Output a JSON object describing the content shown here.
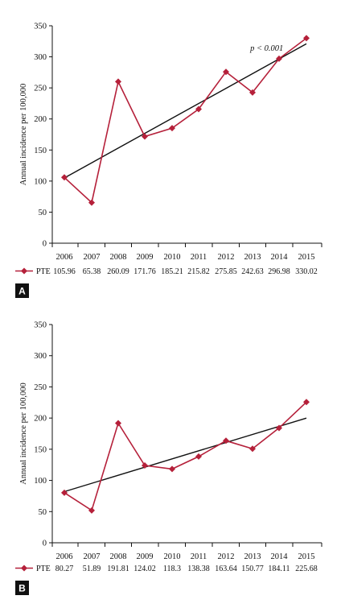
{
  "chart_data": [
    {
      "type": "line",
      "panel_label": "A",
      "ylabel": "Annual incidence per 100,000",
      "ylim": [
        0,
        350
      ],
      "yticks": [
        0,
        50,
        100,
        150,
        200,
        250,
        300,
        350
      ],
      "categories": [
        "2006",
        "2007",
        "2008",
        "2009",
        "2010",
        "2011",
        "2012",
        "2013",
        "2014",
        "2015"
      ],
      "series": [
        {
          "name": "PTE",
          "values": [
            105.96,
            65.38,
            260.09,
            171.76,
            185.21,
            215.82,
            275.85,
            242.63,
            296.98,
            330.02
          ],
          "value_labels": [
            "105.96",
            "65.38",
            "260.09",
            "171.76",
            "185.21",
            "215.82",
            "275.85",
            "242.63",
            "296.98",
            "330.02"
          ],
          "color": "#b5203a"
        }
      ],
      "trend": {
        "start": [
          0,
          105.0
        ],
        "end": [
          9,
          321.0
        ],
        "color": "#111111"
      },
      "annotation": {
        "text": "p < 0.001",
        "x": 7.55,
        "y": 310
      }
    },
    {
      "type": "line",
      "panel_label": "B",
      "ylabel": "Annual incidence per 100,000",
      "ylim": [
        0,
        350
      ],
      "yticks": [
        0,
        50,
        100,
        150,
        200,
        250,
        300,
        350
      ],
      "categories": [
        "2006",
        "2007",
        "2008",
        "2009",
        "2010",
        "2011",
        "2012",
        "2013",
        "2014",
        "2015"
      ],
      "series": [
        {
          "name": "PTE",
          "values": [
            80.27,
            51.89,
            191.81,
            124.02,
            118.3,
            138.38,
            163.64,
            150.77,
            184.11,
            225.68
          ],
          "value_labels": [
            "80.27",
            "51.89",
            "191.81",
            "124.02",
            "118.3",
            "138.38",
            "163.64",
            "150.77",
            "184.11",
            "225.68"
          ],
          "color": "#b5203a"
        }
      ],
      "trend": {
        "start": [
          0,
          82.0
        ],
        "end": [
          9,
          200.0
        ],
        "color": "#111111"
      }
    }
  ]
}
